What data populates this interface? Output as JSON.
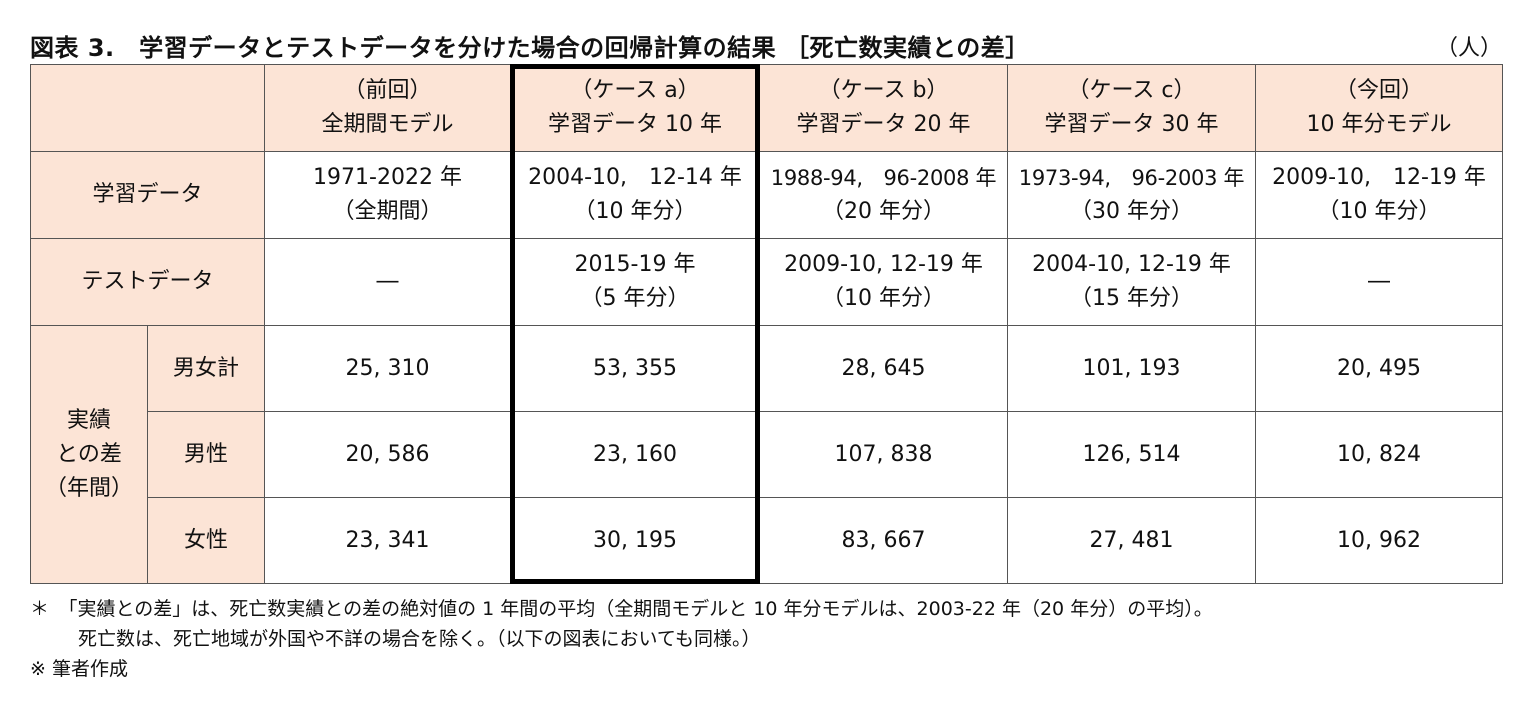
{
  "title": "図表 3.　学習データとテストデータを分けた場合の回帰計算の結果 ［死亡数実績との差］",
  "unit": "（人）",
  "table": {
    "columns": [
      {
        "line1": "（前回）",
        "line2": "全期間モデル"
      },
      {
        "line1": "（ケース a）",
        "line2": "学習データ 10 年"
      },
      {
        "line1": "（ケース b）",
        "line2": "学習データ 20 年"
      },
      {
        "line1": "（ケース c）",
        "line2": "学習データ 30 年"
      },
      {
        "line1": "（今回）",
        "line2": "10 年分モデル"
      }
    ],
    "train": {
      "label": "学習データ",
      "cells": [
        {
          "line1": "1971-2022 年",
          "line2": "（全期間）"
        },
        {
          "line1": "2004-10,　12-14 年",
          "line2": "（10 年分）"
        },
        {
          "line1": "1988-94,　96-2008 年",
          "line2": "（20 年分）"
        },
        {
          "line1": "1973-94,　96-2003 年",
          "line2": "（30 年分）"
        },
        {
          "line1": "2009-10,　12-19 年",
          "line2": "（10 年分）"
        }
      ]
    },
    "test": {
      "label": "テストデータ",
      "cells": [
        {
          "line1": "―",
          "line2": ""
        },
        {
          "line1": "2015-19 年",
          "line2": "（5 年分）"
        },
        {
          "line1": "2009-10, 12-19 年",
          "line2": "（10 年分）"
        },
        {
          "line1": "2004-10, 12-19 年",
          "line2": "（15 年分）"
        },
        {
          "line1": "―",
          "line2": ""
        }
      ]
    },
    "diff_label": {
      "line1": "実績",
      "line2": "との差",
      "line3": "（年間）"
    },
    "rows": [
      {
        "label": "男女計",
        "values": [
          "25, 310",
          "53, 355",
          "28, 645",
          "101, 193",
          "20, 495"
        ]
      },
      {
        "label": "男性",
        "values": [
          "20, 586",
          "23, 160",
          "107, 838",
          "126, 514",
          "10, 824"
        ]
      },
      {
        "label": "女性",
        "values": [
          "23, 341",
          "30, 195",
          "83, 667",
          "27, 481",
          "10, 962"
        ]
      }
    ]
  },
  "notes": {
    "note1": "＊　「実績との差」は、死亡数実績との差の絶対値の 1 年間の平均（全期間モデルと 10 年分モデルは、2003-22 年（20 年分）の平均）。",
    "note2": "死亡数は、死亡地域が外国や不詳の場合を除く。（以下の図表においても同様。）",
    "note3": "※ 筆者作成"
  },
  "colors": {
    "header_bg": "#fce4d6",
    "highlight_border": "#000000",
    "grid": "#555555"
  }
}
